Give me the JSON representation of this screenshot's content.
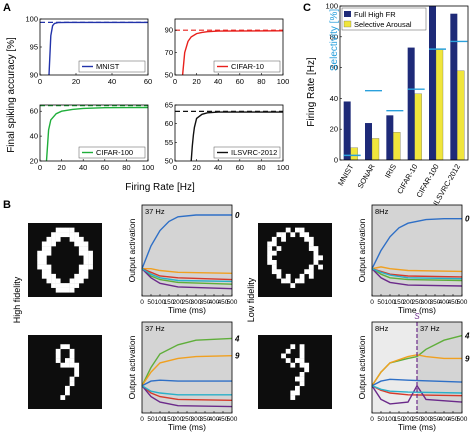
{
  "panel_labels": {
    "a": "A",
    "b": "B",
    "c": "C"
  },
  "colors": {
    "mnist": "#2233aa",
    "cifar10": "#e8201c",
    "cifar100": "#1fae3a",
    "ilsvrc": "#111111",
    "full_high_fr": "#1e2a78",
    "selective_arousal": "#f0e53c",
    "selectivity": "#2aa0dc",
    "gray_bg": "#d4d4d4",
    "digit_bg": "#0d0d0d",
    "digit_fg": "#ffffff",
    "s_marker": "#6b2a8a",
    "act_blue": "#2e6fc6",
    "act_orange": "#f0a020",
    "act_red": "#d63a2a",
    "act_green": "#5fae3a",
    "act_purple": "#6b2a8a",
    "act_teal": "#2ab0c8",
    "act_darkred": "#8a1a1a"
  },
  "text": {
    "a_ylabel": "Final spiking accuracy [%]",
    "a_xlabel": "Firing Rate [Hz]",
    "b_row1": "High fidelity",
    "b_row2": "Low fidelity",
    "c_ylabel": "Firing Rate [Hz]",
    "c_ylabel2": "Selectivity [%]",
    "out_ylabel": "Output activation",
    "time_xlabel": "Time (ms)",
    "s_marker": "S"
  },
  "chart_data": [
    {
      "type": "line",
      "panel": "A",
      "name": "MNIST",
      "xlim": [
        0,
        60
      ],
      "ylim": [
        90,
        100
      ],
      "xticks": [
        0,
        20,
        40,
        60
      ],
      "yticks": [
        90,
        95,
        100
      ],
      "legend": "MNIST",
      "legend_position": "bottom-right",
      "reference_value": 99.4,
      "series": [
        {
          "name": "MNIST",
          "x": [
            5,
            6,
            7,
            8,
            10,
            15,
            60
          ],
          "y": [
            90,
            97,
            98.8,
            99.2,
            99.35,
            99.4,
            99.4
          ]
        }
      ]
    },
    {
      "type": "line",
      "panel": "A",
      "name": "CIFAR-10",
      "xlim": [
        0,
        100
      ],
      "ylim": [
        50,
        100
      ],
      "xticks": [
        0,
        20,
        40,
        60,
        80,
        100
      ],
      "yticks": [
        50,
        70,
        90
      ],
      "legend": "CIFAR-10",
      "legend_position": "bottom-right",
      "reference_value": 90,
      "series": [
        {
          "name": "CIFAR-10",
          "x": [
            7,
            9,
            12,
            15,
            20,
            25,
            30,
            40,
            100
          ],
          "y": [
            50,
            70,
            80,
            84,
            87,
            88,
            88.7,
            89.2,
            89.5
          ]
        }
      ]
    },
    {
      "type": "line",
      "panel": "A",
      "name": "CIFAR-100",
      "xlim": [
        0,
        100
      ],
      "ylim": [
        20,
        65
      ],
      "xticks": [
        0,
        20,
        40,
        60,
        80,
        100
      ],
      "yticks": [
        20,
        40,
        60
      ],
      "legend": "CIFAR-100",
      "legend_position": "bottom-right",
      "reference_value": 64.5,
      "series": [
        {
          "name": "CIFAR-100",
          "x": [
            6,
            8,
            10,
            15,
            20,
            30,
            40,
            60,
            100
          ],
          "y": [
            20,
            45,
            53,
            58,
            60,
            61.5,
            62.3,
            62.8,
            63
          ]
        }
      ]
    },
    {
      "type": "line",
      "panel": "A",
      "name": "ILSVRC-2012",
      "xlim": [
        0,
        100
      ],
      "ylim": [
        50,
        65
      ],
      "xticks": [
        0,
        20,
        40,
        60,
        80,
        100
      ],
      "yticks": [
        50,
        55,
        60,
        65
      ],
      "legend": "ILSVRC-2012",
      "legend_position": "bottom-right",
      "reference_value": 63.3,
      "series": [
        {
          "name": "ILSVRC-2012",
          "x": [
            15,
            16,
            17,
            18,
            20,
            25,
            30,
            40,
            100
          ],
          "y": [
            50,
            54,
            57,
            59,
            61.4,
            62.5,
            62.9,
            63.1,
            63.1
          ]
        }
      ]
    },
    {
      "type": "bar",
      "panel": "C",
      "categories": [
        "MNIST",
        "SONAR",
        "IRIS",
        "CIFAR-10",
        "CIFAR-100",
        "ILSVRC-2012"
      ],
      "ylim": [
        0,
        100
      ],
      "yticks": [
        0,
        20,
        40,
        60,
        80,
        100
      ],
      "legend_position": "top-left",
      "series": [
        {
          "name": "Full High FR",
          "values": [
            38,
            24,
            29,
            73,
            101,
            95
          ]
        },
        {
          "name": "Selective Arousal",
          "values": [
            8,
            14,
            18,
            43,
            72,
            58
          ]
        }
      ],
      "selectivity": [
        3,
        45,
        32,
        46,
        72,
        77
      ]
    },
    {
      "type": "line",
      "panel": "B-top-left",
      "annotation": "37 Hz",
      "class_label": "0",
      "xlim": [
        0,
        500
      ],
      "ylim": [
        0,
        1
      ],
      "xticks": [
        0,
        50,
        100,
        150,
        200,
        250,
        300,
        350,
        400,
        450,
        500
      ],
      "series": [
        {
          "color": "act_blue",
          "x": [
            0,
            50,
            100,
            150,
            200,
            300,
            500
          ],
          "y": [
            0.3,
            0.55,
            0.72,
            0.82,
            0.87,
            0.89,
            0.89
          ]
        },
        {
          "color": "act_orange",
          "x": [
            0,
            50,
            100,
            200,
            500
          ],
          "y": [
            0.3,
            0.3,
            0.28,
            0.26,
            0.25
          ]
        },
        {
          "color": "act_red",
          "x": [
            0,
            50,
            100,
            200,
            500
          ],
          "y": [
            0.3,
            0.26,
            0.22,
            0.2,
            0.18
          ]
        },
        {
          "color": "act_green",
          "x": [
            0,
            50,
            100,
            200,
            500
          ],
          "y": [
            0.3,
            0.22,
            0.18,
            0.15,
            0.13
          ]
        },
        {
          "color": "act_purple",
          "x": [
            0,
            50,
            100,
            200,
            500
          ],
          "y": [
            0.3,
            0.2,
            0.14,
            0.1,
            0.08
          ]
        },
        {
          "color": "act_teal",
          "x": [
            0,
            50,
            100,
            200,
            500
          ],
          "y": [
            0.3,
            0.24,
            0.2,
            0.17,
            0.16
          ]
        }
      ]
    },
    {
      "type": "line",
      "panel": "B-top-right",
      "annotation": "8Hz",
      "class_label": "0",
      "xlim": [
        0,
        500
      ],
      "ylim": [
        0,
        1
      ],
      "xticks": [
        0,
        50,
        100,
        150,
        200,
        250,
        300,
        350,
        400,
        450,
        500
      ],
      "series": [
        {
          "color": "act_blue",
          "x": [
            0,
            50,
            100,
            150,
            200,
            300,
            400,
            500
          ],
          "y": [
            0.3,
            0.5,
            0.65,
            0.75,
            0.8,
            0.84,
            0.85,
            0.85
          ]
        },
        {
          "color": "act_orange",
          "x": [
            0,
            50,
            100,
            200,
            500
          ],
          "y": [
            0.3,
            0.32,
            0.3,
            0.28,
            0.27
          ]
        },
        {
          "color": "act_red",
          "x": [
            0,
            50,
            100,
            200,
            500
          ],
          "y": [
            0.3,
            0.27,
            0.24,
            0.22,
            0.21
          ]
        },
        {
          "color": "act_green",
          "x": [
            0,
            50,
            100,
            200,
            500
          ],
          "y": [
            0.3,
            0.24,
            0.2,
            0.18,
            0.17
          ]
        },
        {
          "color": "act_purple",
          "x": [
            0,
            50,
            100,
            200,
            500
          ],
          "y": [
            0.3,
            0.2,
            0.15,
            0.12,
            0.11
          ]
        },
        {
          "color": "act_teal",
          "x": [
            0,
            50,
            100,
            200,
            500
          ],
          "y": [
            0.3,
            0.26,
            0.23,
            0.2,
            0.19
          ]
        }
      ]
    },
    {
      "type": "line",
      "panel": "B-bottom-left",
      "annotation": "37 Hz",
      "class_labels": [
        "4",
        "9"
      ],
      "xlim": [
        0,
        500
      ],
      "ylim": [
        0,
        1
      ],
      "xticks": [
        0,
        50,
        100,
        150,
        200,
        250,
        300,
        350,
        400,
        450,
        500
      ],
      "series": [
        {
          "color": "act_green",
          "x": [
            0,
            50,
            100,
            200,
            300,
            500
          ],
          "y": [
            0.3,
            0.5,
            0.65,
            0.75,
            0.8,
            0.82
          ]
        },
        {
          "color": "act_orange",
          "x": [
            0,
            50,
            100,
            200,
            300,
            500
          ],
          "y": [
            0.3,
            0.45,
            0.55,
            0.6,
            0.62,
            0.63
          ]
        },
        {
          "color": "act_blue",
          "x": [
            0,
            50,
            100,
            200,
            500
          ],
          "y": [
            0.3,
            0.35,
            0.36,
            0.35,
            0.35
          ]
        },
        {
          "color": "act_red",
          "x": [
            0,
            50,
            100,
            200,
            500
          ],
          "y": [
            0.3,
            0.22,
            0.18,
            0.15,
            0.14
          ]
        },
        {
          "color": "act_purple",
          "x": [
            0,
            50,
            100,
            200,
            500
          ],
          "y": [
            0.3,
            0.18,
            0.12,
            0.08,
            0.07
          ]
        },
        {
          "color": "act_teal",
          "x": [
            0,
            50,
            100,
            200,
            500
          ],
          "y": [
            0.3,
            0.24,
            0.22,
            0.2,
            0.2
          ]
        }
      ]
    },
    {
      "type": "line",
      "panel": "B-bottom-right",
      "annotations": [
        "8Hz",
        "37 Hz"
      ],
      "class_labels": [
        "4",
        "9"
      ],
      "switch_time": 250,
      "xlim": [
        0,
        500
      ],
      "ylim": [
        0,
        1
      ],
      "xticks": [
        0,
        50,
        100,
        150,
        200,
        250,
        300,
        350,
        400,
        450,
        500
      ],
      "series": [
        {
          "color": "act_green",
          "x": [
            0,
            50,
            100,
            200,
            250,
            300,
            400,
            500
          ],
          "y": [
            0.3,
            0.45,
            0.55,
            0.6,
            0.62,
            0.7,
            0.8,
            0.85
          ]
        },
        {
          "color": "act_orange",
          "x": [
            0,
            50,
            100,
            200,
            250,
            300,
            400,
            500
          ],
          "y": [
            0.3,
            0.45,
            0.55,
            0.62,
            0.64,
            0.62,
            0.6,
            0.6
          ]
        },
        {
          "color": "act_blue",
          "x": [
            0,
            50,
            100,
            200,
            500
          ],
          "y": [
            0.3,
            0.35,
            0.37,
            0.36,
            0.34
          ]
        },
        {
          "color": "act_red",
          "x": [
            0,
            50,
            100,
            200,
            500
          ],
          "y": [
            0.3,
            0.25,
            0.22,
            0.2,
            0.19
          ]
        },
        {
          "color": "act_purple",
          "x": [
            0,
            50,
            100,
            200,
            250,
            300,
            500
          ],
          "y": [
            0.3,
            0.15,
            0.1,
            0.12,
            0.3,
            0.15,
            0.12
          ]
        },
        {
          "color": "act_teal",
          "x": [
            0,
            50,
            100,
            200,
            500
          ],
          "y": [
            0.3,
            0.26,
            0.24,
            0.23,
            0.22
          ]
        }
      ]
    }
  ],
  "digits": [
    {
      "label": "0",
      "quality": "clean",
      "rows": [
        "................",
        "......####......",
        ".....######.....",
        "....###..###....",
        "...###....###...",
        "...##......##...",
        "..###......###..",
        "..##........##..",
        "..##........##..",
        "..###......###..",
        "...##......##...",
        "...###....###...",
        "....###..###....",
        ".....######.....",
        "......####......",
        "................"
      ]
    },
    {
      "label": "0",
      "quality": "noisy",
      "rows": [
        "................",
        "......#.##......",
        "....##.#.##.....",
        "...#.#....##....",
        "..##.......#....",
        "..#.#......##...",
        "..##........#...",
        "..#.........##..",
        "..##........#...",
        "...#.......#.#..",
        "...##.....##....",
        "....#.#..#.#....",
        ".....##.##......",
        ".......#........",
        "................",
        "................"
      ]
    },
    {
      "label": "9",
      "quality": "clean",
      "rows": [
        "................",
        "................",
        ".......##.......",
        "......#..#......",
        "......#..#......",
        "......#.##......",
        ".......####.....",
        "..........#.....",
        "..........#.....",
        ".........#......",
        ".........#......",
        "........#.......",
        "........#.......",
        ".......#........",
        "................",
        "................"
      ]
    },
    {
      "label": "9",
      "quality": "noisy",
      "rows": [
        "................",
        "................",
        ".......#.#......",
        "......#..#......",
        ".....#...#......",
        "......#.##......",
        ".......#.##.....",
        "..........#.....",
        ".........#......",
        "........##......",
        ".........#......",
        "........#.......",
        ".......##.......",
        ".......#........",
        "................",
        "................"
      ]
    }
  ]
}
